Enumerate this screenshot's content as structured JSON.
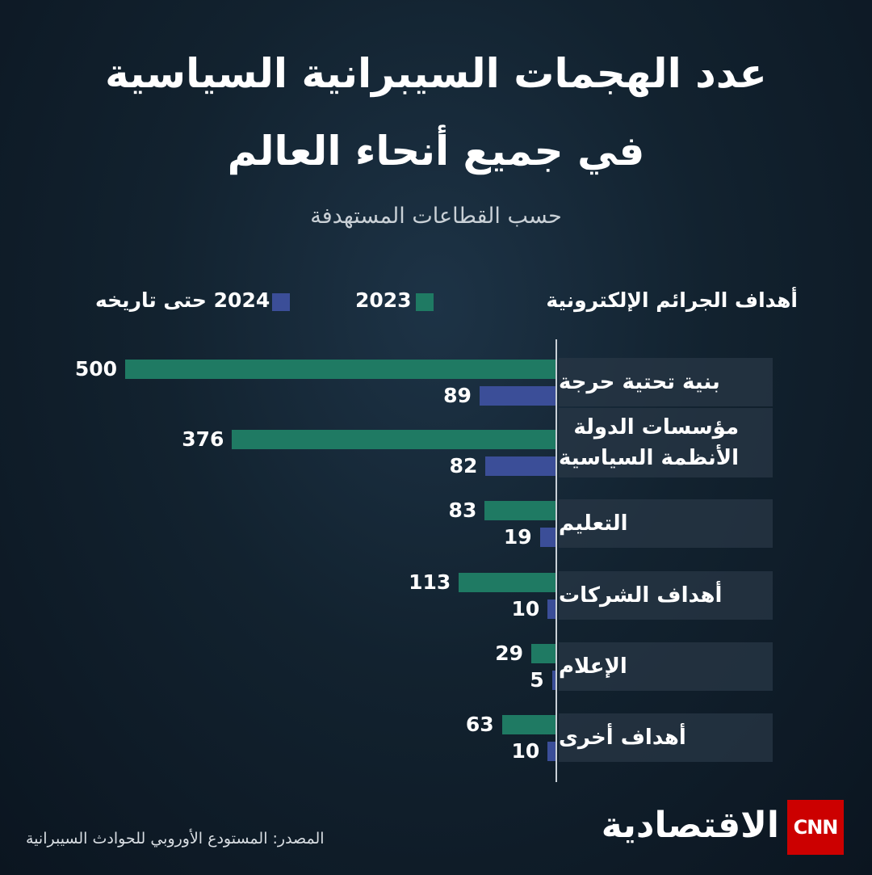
{
  "chart_data": {
    "type": "bar",
    "orientation": "horizontal",
    "title": [
      "عدد الهجمات السيبرانية السياسية",
      "في جميع أنحاء العالم"
    ],
    "subtitle": "حسب القطاعات المستهدفة",
    "category_heading": "أهداف الجرائم الإلكترونية",
    "categories": [
      "بنية تحتية حرجة",
      "مؤسسات الدولة\nالأنظمة السياسية",
      "التعليم",
      "أهداف الشركات",
      "الإعلام",
      "أهداف أخرى"
    ],
    "series": [
      {
        "name": "2023",
        "color": "#1f7a63",
        "values": [
          500,
          376,
          83,
          113,
          29,
          63
        ]
      },
      {
        "name": "2024 حتى تاريخه",
        "color": "#3b4e98",
        "values": [
          89,
          82,
          19,
          10,
          5,
          10
        ]
      }
    ]
  },
  "source": "المصدر: المستودع الأوروبي للحوادث السيبرانية",
  "logo": {
    "brand": "CNN",
    "name": "الاقتصادية"
  }
}
